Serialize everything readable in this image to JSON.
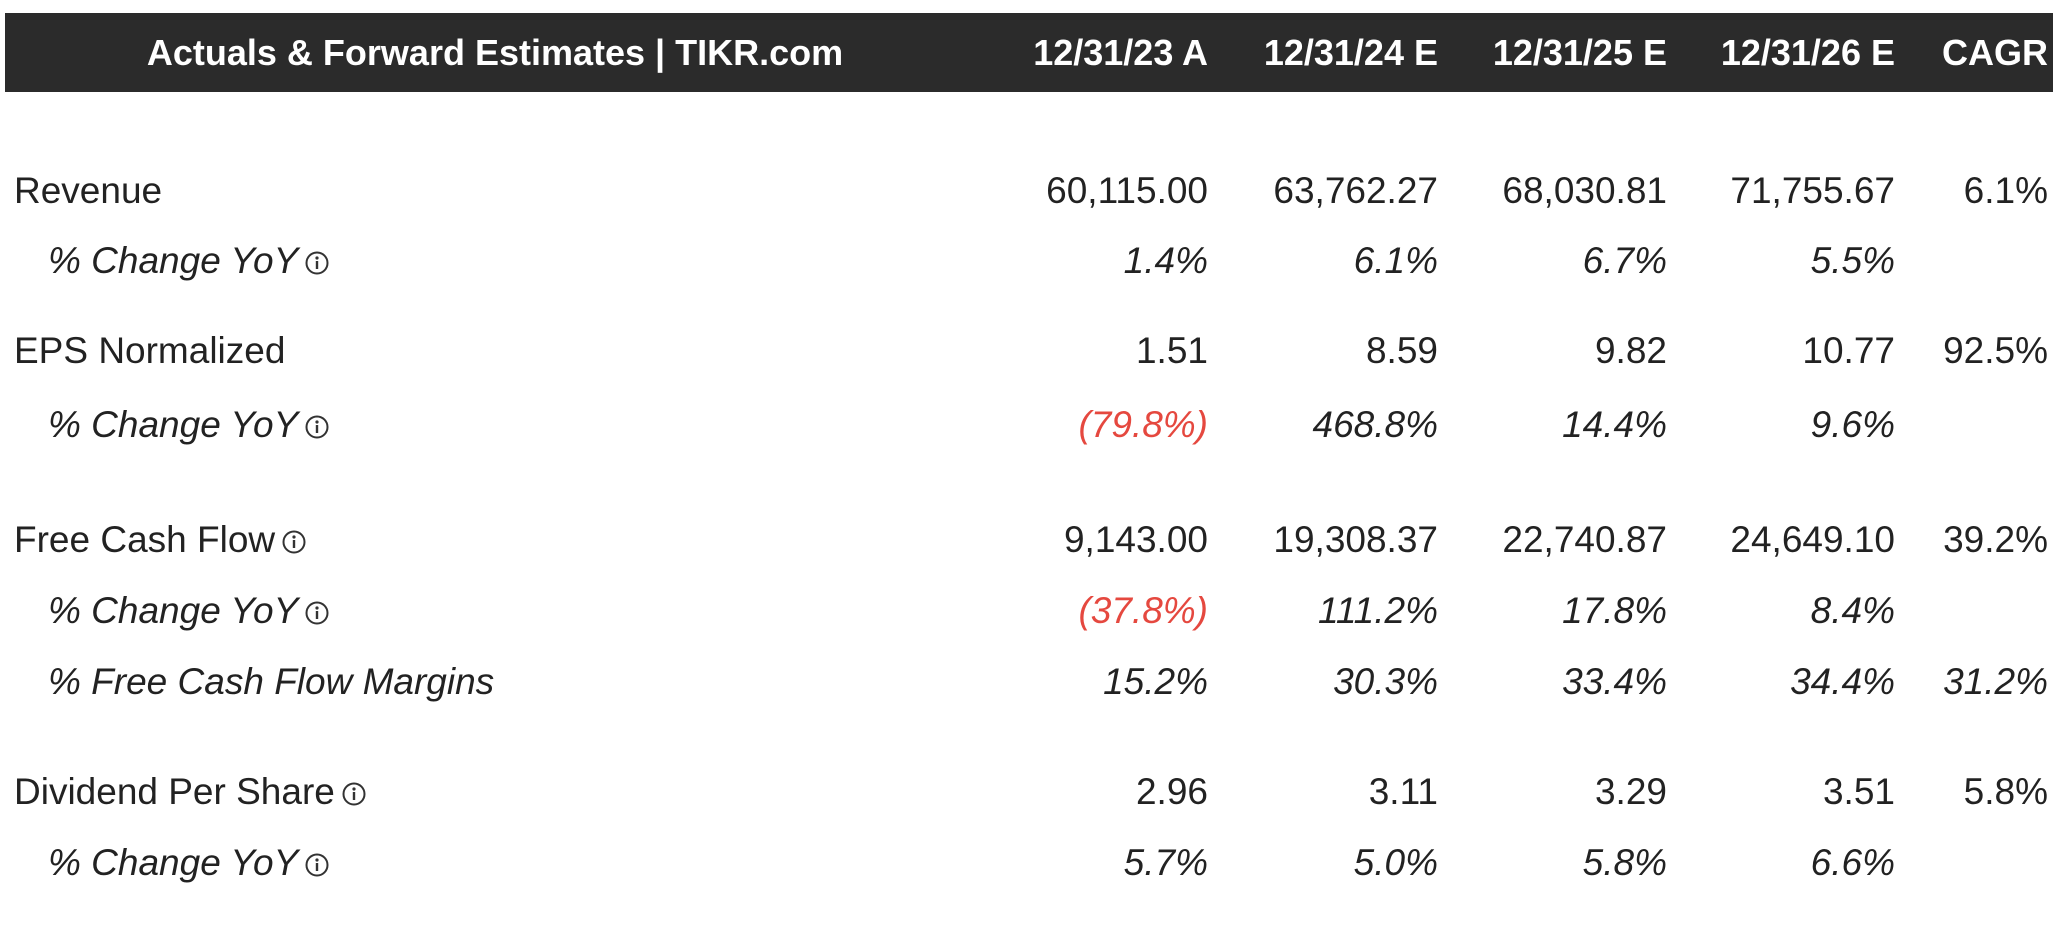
{
  "header": {
    "title": "Actuals & Forward Estimates | TIKR.com",
    "columns": [
      "12/31/23 A",
      "12/31/24 E",
      "12/31/25 E",
      "12/31/26 E",
      "CAGR"
    ]
  },
  "rows": [
    {
      "label": "Revenue",
      "kind": "main",
      "info": false,
      "values": [
        "60,115.00",
        "63,762.27",
        "68,030.81",
        "71,755.67",
        "6.1%"
      ]
    },
    {
      "label": "% Change YoY",
      "kind": "sub",
      "info": true,
      "values": [
        "1.4%",
        "6.1%",
        "6.7%",
        "5.5%",
        null
      ]
    },
    {
      "label": "EPS Normalized",
      "kind": "main",
      "info": false,
      "values": [
        "1.51",
        "8.59",
        "9.82",
        "10.77",
        "92.5%"
      ]
    },
    {
      "label": "% Change YoY",
      "kind": "sub",
      "info": true,
      "values": [
        "(79.8%)",
        "468.8%",
        "14.4%",
        "9.6%",
        null
      ]
    },
    {
      "label": "Free Cash Flow",
      "kind": "main",
      "info": true,
      "values": [
        "9,143.00",
        "19,308.37",
        "22,740.87",
        "24,649.10",
        "39.2%"
      ]
    },
    {
      "label": "% Change YoY",
      "kind": "sub",
      "info": true,
      "values": [
        "(37.8%)",
        "111.2%",
        "17.8%",
        "8.4%",
        null
      ]
    },
    {
      "label": "% Free Cash Flow Margins",
      "kind": "sub",
      "info": false,
      "values": [
        "15.2%",
        "30.3%",
        "33.4%",
        "34.4%",
        "31.2%"
      ]
    },
    {
      "label": "Dividend Per Share",
      "kind": "main",
      "info": true,
      "values": [
        "2.96",
        "3.11",
        "3.29",
        "3.51",
        "5.8%"
      ]
    },
    {
      "label": "% Change YoY",
      "kind": "sub",
      "info": true,
      "values": [
        "5.7%",
        "5.0%",
        "5.8%",
        "6.6%",
        null
      ]
    }
  ]
}
